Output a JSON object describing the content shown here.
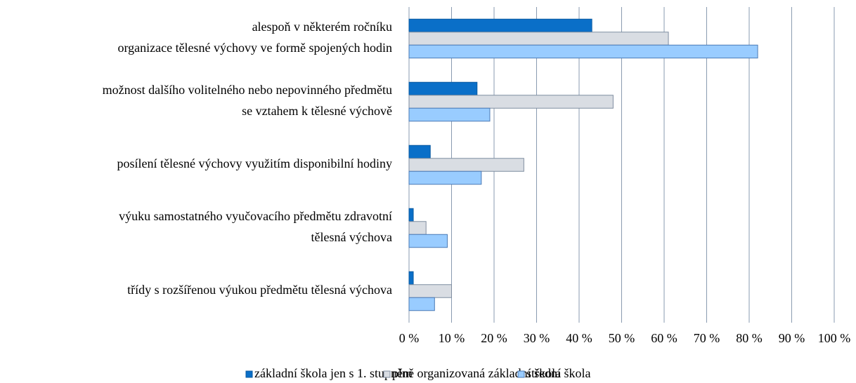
{
  "chart_data": {
    "type": "hbar",
    "categories": [
      [
        "alespoň v některém ročníku",
        "organizace tělesné výchovy ve formě spojených hodin"
      ],
      [
        "možnost dalšího volitelného nebo nepovinného předmětu",
        "se vztahem k tělesné výchově"
      ],
      [
        "posílení tělesné výchovy využitím disponibilní hodiny"
      ],
      [
        "výuku samostatného vyučovacího předmětu zdravotní",
        "tělesná výchova"
      ],
      [
        "třídy s rozšířenou výukou předmětu tělesná výchova"
      ]
    ],
    "series": [
      {
        "name": "základní škola jen s 1. stupněm",
        "color": "#0a6fc8",
        "values": [
          43,
          16,
          5,
          1,
          1
        ]
      },
      {
        "name": "plně organizovaná základní škola",
        "color": "#d9dde3",
        "values": [
          61,
          48,
          27,
          4,
          10
        ]
      },
      {
        "name": "střední škola",
        "color": "#99ccff",
        "values": [
          82,
          19,
          17,
          9,
          6
        ]
      }
    ],
    "xlim": [
      0,
      100
    ],
    "xticks": [
      {
        "value": 0,
        "label": "0 %"
      },
      {
        "value": 10,
        "label": "10 %"
      },
      {
        "value": 20,
        "label": "20 %"
      },
      {
        "value": 30,
        "label": "30 %"
      },
      {
        "value": 40,
        "label": "40 %"
      },
      {
        "value": 50,
        "label": "50 %"
      },
      {
        "value": 60,
        "label": "60 %"
      },
      {
        "value": 70,
        "label": "70 %"
      },
      {
        "value": 80,
        "label": "80 %"
      },
      {
        "value": 90,
        "label": "90 %"
      },
      {
        "value": 100,
        "label": "100 %"
      }
    ],
    "grid": true,
    "legend": "bottom"
  }
}
